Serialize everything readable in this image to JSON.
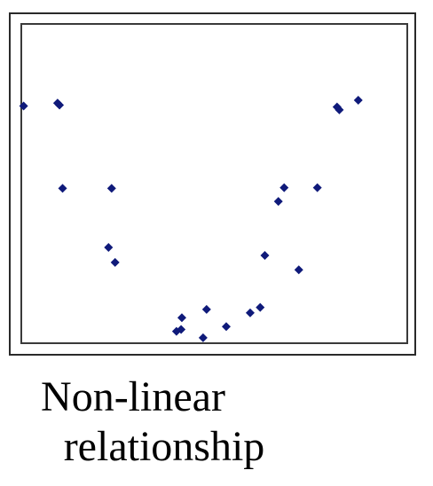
{
  "caption": {
    "line1": "Non-linear",
    "line2": "relationship"
  },
  "chart_data": {
    "type": "scatter",
    "title": "",
    "xlabel": "",
    "ylabel": "",
    "xlim": [
      0,
      100
    ],
    "ylim": [
      0,
      100
    ],
    "grid": false,
    "legend": "none",
    "series": [
      {
        "color": "#0f1a7a",
        "points": [
          {
            "x": 0.6,
            "y": 74.3
          },
          {
            "x": 9.4,
            "y": 75.2
          },
          {
            "x": 9.9,
            "y": 74.6
          },
          {
            "x": 10.7,
            "y": 48.5
          },
          {
            "x": 23.4,
            "y": 48.5
          },
          {
            "x": 22.6,
            "y": 30.0
          },
          {
            "x": 24.3,
            "y": 25.3
          },
          {
            "x": 40.2,
            "y": 3.7
          },
          {
            "x": 41.4,
            "y": 4.3
          },
          {
            "x": 41.6,
            "y": 8.0
          },
          {
            "x": 47.1,
            "y": 1.7
          },
          {
            "x": 48.0,
            "y": 10.6
          },
          {
            "x": 53.1,
            "y": 5.2
          },
          {
            "x": 59.3,
            "y": 9.5
          },
          {
            "x": 61.9,
            "y": 11.2
          },
          {
            "x": 63.1,
            "y": 27.5
          },
          {
            "x": 66.6,
            "y": 44.4
          },
          {
            "x": 68.1,
            "y": 48.7
          },
          {
            "x": 71.9,
            "y": 23.0
          },
          {
            "x": 76.7,
            "y": 48.7
          },
          {
            "x": 81.8,
            "y": 74.0
          },
          {
            "x": 82.4,
            "y": 73.1
          },
          {
            "x": 87.3,
            "y": 76.1
          }
        ]
      }
    ]
  }
}
